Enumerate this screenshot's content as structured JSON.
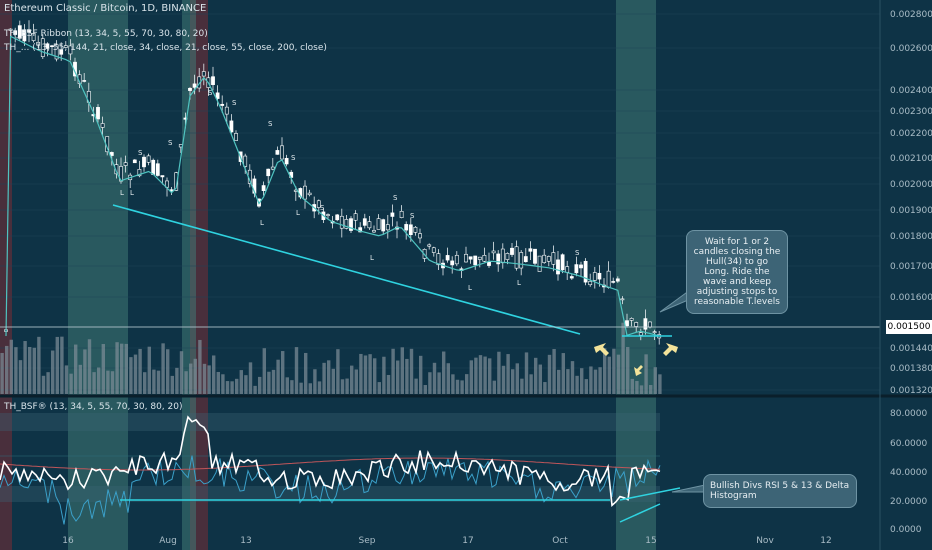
{
  "header": {
    "symbol_title": "Ethereum Classic / Bitcoin, 1D, BINANCE",
    "overlay_line1": "TH_BSF Ribbon (13, 34, 5, 55, 70, 30, 80, 20)",
    "overlay_line2": "TH_... (13, 55, 144, 21, close, 34, close, 21, close, 55, close, 200, close)"
  },
  "colors": {
    "background": "#0e3346",
    "up_candle": "#ffffff",
    "down_candle": "#ffffff",
    "hull_line": "#4fc3c0",
    "trend_line": "#2fd3e0",
    "highlight_band": "#4a8a86",
    "sell_band": "#7a2b35",
    "arrow": "#f3e39a"
  },
  "price_axis": {
    "ticks": [
      "0.002800",
      "0.002600",
      "0.002400",
      "0.002300",
      "0.002200",
      "0.002100",
      "0.002000",
      "0.001900",
      "0.001800",
      "0.001700",
      "0.001600",
      "0.001520",
      "0.001440",
      "0.001380",
      "0.001320"
    ],
    "current_price": "0.001500"
  },
  "oscillator": {
    "title": "TH_BSF® (13, 34, 5, 55, 70, 30, 80, 20)",
    "ticks": [
      "80.0000",
      "60.0000",
      "40.0000",
      "20.0000",
      "0.0000"
    ]
  },
  "time_axis": {
    "ticks": [
      "16",
      "Aug",
      "13",
      "Sep",
      "17",
      "Oct",
      "15",
      "Nov",
      "12"
    ]
  },
  "annotations": {
    "hull_note": "Wait for 1 or 2 candles closing the Hull(34) to go Long. Ride the wave and keep adjusting stops to reasonable T.levels",
    "divs_note": "Bullish Divs RSI 5 & 13 & Delta Histogram"
  },
  "markers": {
    "sell": "S",
    "buy": "L"
  }
}
